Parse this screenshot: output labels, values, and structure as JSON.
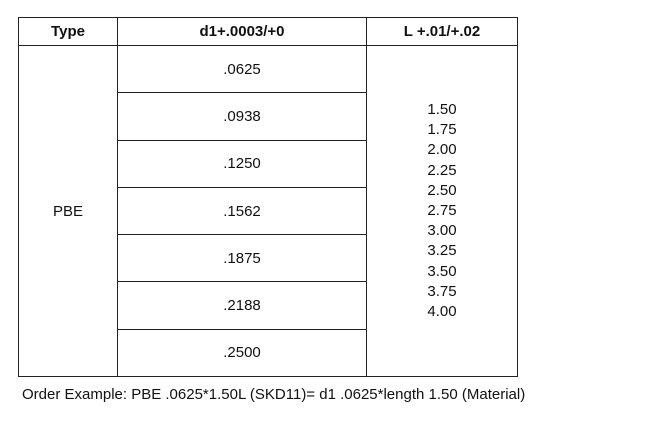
{
  "table": {
    "header": [
      "Type",
      "d1+.0003/+0",
      "L +.01/+.02"
    ],
    "type": "PBE",
    "d1": [
      ".0625",
      ".0938",
      ".1250",
      ".1562",
      ".1875",
      ".2188",
      ".2500"
    ],
    "L": [
      "1.50",
      "1.75",
      "2.00",
      "2.25",
      "2.50",
      "2.75",
      "3.00",
      "3.25",
      "3.50",
      "3.75",
      "4.00"
    ]
  },
  "footer": "Order Example: PBE .0625*1.50L (SKD11)= d1 .0625*length 1.50 (Material)"
}
